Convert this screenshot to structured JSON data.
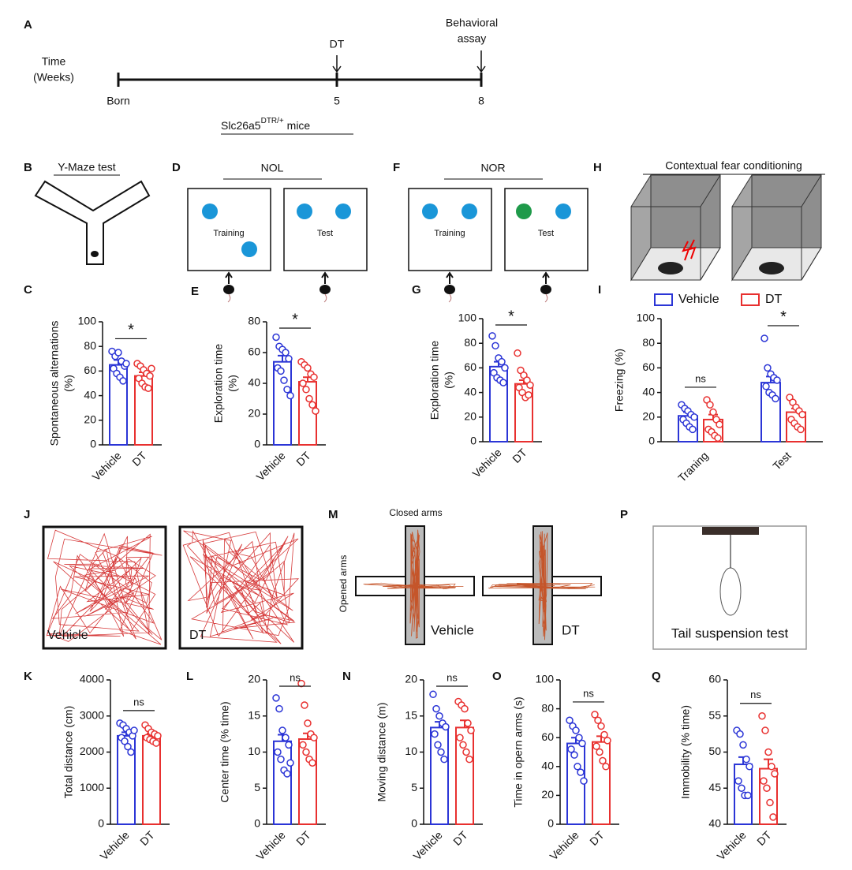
{
  "panel_labels": [
    "A",
    "B",
    "C",
    "D",
    "E",
    "F",
    "G",
    "H",
    "I",
    "J",
    "K",
    "L",
    "M",
    "N",
    "O",
    "P",
    "Q"
  ],
  "timeline": {
    "axis_label": [
      "Time",
      "(Weeks)"
    ],
    "points": [
      "Born",
      "5",
      "8"
    ],
    "event_dt": "DT",
    "event_assay": [
      "Behavioral",
      "assay"
    ],
    "strain": "Slc26a5",
    "strain_sup": "DTR/+",
    "strain_suffix": " mice"
  },
  "diagrams": {
    "ymaze": "Y-Maze test",
    "nol": {
      "title": "NOL",
      "training": "Training",
      "test": "Test"
    },
    "nor": {
      "title": "NOR",
      "training": "Training",
      "test": "Test"
    },
    "fear": "Contextual fear conditioning",
    "openfield": [
      "Vehicle",
      "DT"
    ],
    "epm": {
      "closed": "Closed arms",
      "opened": "Opened arms",
      "groups": [
        "Vehicle",
        "DT"
      ]
    },
    "tail": "Tail suspension test"
  },
  "chart_data": [
    {
      "type": "bar",
      "ylabel": [
        "Spontaneous alternations",
        "(%)"
      ],
      "categories": [
        "Vehicle",
        "DT"
      ],
      "series": [
        {
          "colors": [
            "#2b35d6",
            "#e8302f"
          ],
          "values": [
            65,
            56
          ],
          "errors": [
            4,
            3
          ],
          "points": [
            [
              76,
              72,
              75,
              68,
              64,
              62,
              58,
              55,
              52,
              66
            ],
            [
              66,
              64,
              61,
              58,
              56,
              54,
              50,
              47,
              46,
              62
            ]
          ]
        }
      ],
      "ylim": [
        0,
        100
      ],
      "yticks": [
        0,
        20,
        40,
        60,
        80,
        100
      ],
      "significance": [
        "*"
      ]
    },
    {
      "type": "bar",
      "ylabel": [
        "Exploration time",
        "(%)"
      ],
      "categories": [
        "Vehicle",
        "DT"
      ],
      "series": [
        {
          "colors": [
            "#2b35d6",
            "#e8302f"
          ],
          "values": [
            54,
            41
          ],
          "errors": [
            4,
            3
          ],
          "points": [
            [
              70,
              64,
              62,
              60,
              56,
              50,
              48,
              42,
              36,
              32
            ],
            [
              54,
              52,
              50,
              46,
              44,
              40,
              36,
              30,
              26,
              22
            ]
          ]
        }
      ],
      "ylim": [
        0,
        80
      ],
      "yticks": [
        0,
        20,
        40,
        60,
        80
      ],
      "significance": [
        "*"
      ]
    },
    {
      "type": "bar",
      "ylabel": [
        "Exploration time",
        "(%)"
      ],
      "categories": [
        "Vehicle",
        "DT"
      ],
      "series": [
        {
          "colors": [
            "#2b35d6",
            "#e8302f"
          ],
          "values": [
            61,
            47
          ],
          "errors": [
            4,
            3
          ],
          "points": [
            [
              86,
              78,
              68,
              65,
              60,
              56,
              52,
              50,
              48
            ],
            [
              72,
              58,
              54,
              50,
              46,
              44,
              40,
              36,
              38
            ]
          ]
        }
      ],
      "ylim": [
        0,
        100
      ],
      "yticks": [
        0,
        20,
        40,
        60,
        80,
        100
      ],
      "significance": [
        "*"
      ]
    },
    {
      "type": "bar",
      "ylabel": [
        "Freezing (%)"
      ],
      "categories": [
        "Traning",
        "Test"
      ],
      "legend": "top",
      "series": [
        {
          "name": "Vehicle",
          "color": "#2b35d6",
          "values": [
            21,
            48
          ],
          "errors": [
            3,
            5
          ],
          "points": [
            [
              30,
              27,
              25,
              22,
              20,
              18,
              15,
              12,
              10
            ],
            [
              84,
              60,
              55,
              52,
              50,
              45,
              40,
              38,
              35
            ]
          ]
        },
        {
          "name": "DT",
          "color": "#e8302f",
          "values": [
            18,
            24
          ],
          "errors": [
            4,
            3
          ],
          "points": [
            [
              34,
              30,
              24,
              18,
              14,
              10,
              8,
              5,
              3
            ],
            [
              36,
              32,
              28,
              25,
              22,
              18,
              15,
              12,
              10
            ]
          ]
        }
      ],
      "ylim": [
        0,
        100
      ],
      "yticks": [
        0,
        20,
        40,
        60,
        80,
        100
      ],
      "significance": [
        "ns",
        "*"
      ]
    },
    {
      "type": "bar",
      "ylabel": [
        "Total distance (cm)"
      ],
      "categories": [
        "Vehicle",
        "DT"
      ],
      "series": [
        {
          "colors": [
            "#2b35d6",
            "#e8302f"
          ],
          "values": [
            2450,
            2450
          ],
          "errors": [
            100,
            70
          ],
          "points": [
            [
              2800,
              2750,
              2650,
              2550,
              2450,
              2400,
              2300,
              2150,
              2000,
              2600
            ],
            [
              2750,
              2650,
              2550,
              2500,
              2450,
              2400,
              2350,
              2300,
              2250
            ]
          ]
        }
      ],
      "ylim": [
        0,
        4000
      ],
      "yticks": [
        0,
        1000,
        2000,
        3000,
        4000
      ],
      "significance": [
        "ns"
      ]
    },
    {
      "type": "bar",
      "ylabel": [
        "Center time (% time)"
      ],
      "categories": [
        "Vehicle",
        "DT"
      ],
      "series": [
        {
          "colors": [
            "#2b35d6",
            "#e8302f"
          ],
          "values": [
            11.5,
            11.8
          ],
          "errors": [
            0.9,
            0.8
          ],
          "points": [
            [
              17.5,
              16,
              13,
              12,
              11,
              10,
              9,
              7.5,
              7,
              8.5
            ],
            [
              19.5,
              16.5,
              14,
              12.5,
              12,
              11,
              10,
              9,
              8.5
            ]
          ]
        }
      ],
      "ylim": [
        0,
        20
      ],
      "yticks": [
        0,
        5,
        10,
        15,
        20
      ],
      "significance": [
        "ns"
      ]
    },
    {
      "type": "bar",
      "ylabel": [
        "Moving distance (m)"
      ],
      "categories": [
        "Vehicle",
        "DT"
      ],
      "series": [
        {
          "colors": [
            "#2b35d6",
            "#e8302f"
          ],
          "values": [
            13.4,
            13.4
          ],
          "errors": [
            0.8,
            1.0
          ],
          "points": [
            [
              18,
              16,
              15,
              14,
              13.5,
              12.5,
              11,
              10,
              9
            ],
            [
              17,
              16.5,
              16,
              14,
              13,
              12,
              11,
              10,
              9
            ]
          ]
        }
      ],
      "ylim": [
        0,
        20
      ],
      "yticks": [
        0,
        5,
        10,
        15,
        20
      ],
      "significance": [
        "ns"
      ]
    },
    {
      "type": "bar",
      "ylabel": [
        "Time in opern arms (s)"
      ],
      "categories": [
        "Vehicle",
        "DT"
      ],
      "series": [
        {
          "colors": [
            "#2b35d6",
            "#e8302f"
          ],
          "values": [
            56,
            57
          ],
          "errors": [
            4,
            4
          ],
          "points": [
            [
              72,
              68,
              65,
              60,
              56,
              52,
              48,
              40,
              36,
              30
            ],
            [
              76,
              72,
              68,
              62,
              58,
              54,
              50,
              44,
              40
            ]
          ]
        }
      ],
      "ylim": [
        0,
        100
      ],
      "yticks": [
        0,
        20,
        40,
        60,
        80,
        100
      ],
      "significance": [
        "ns"
      ]
    },
    {
      "type": "bar",
      "ylabel": [
        "Immobility (% time)"
      ],
      "categories": [
        "Vehicle",
        "DT"
      ],
      "series": [
        {
          "colors": [
            "#2b35d6",
            "#e8302f"
          ],
          "values": [
            48.3,
            47.7
          ],
          "errors": [
            1,
            1.3
          ],
          "points": [
            [
              53,
              52.5,
              51,
              49,
              48,
              46,
              45,
              44,
              44
            ],
            [
              55,
              53,
              50,
              48,
              47,
              46,
              45,
              43,
              41
            ]
          ]
        }
      ],
      "ylim": [
        40,
        60
      ],
      "yticks": [
        40,
        45,
        50,
        55,
        60
      ],
      "significance": [
        "ns"
      ]
    }
  ]
}
